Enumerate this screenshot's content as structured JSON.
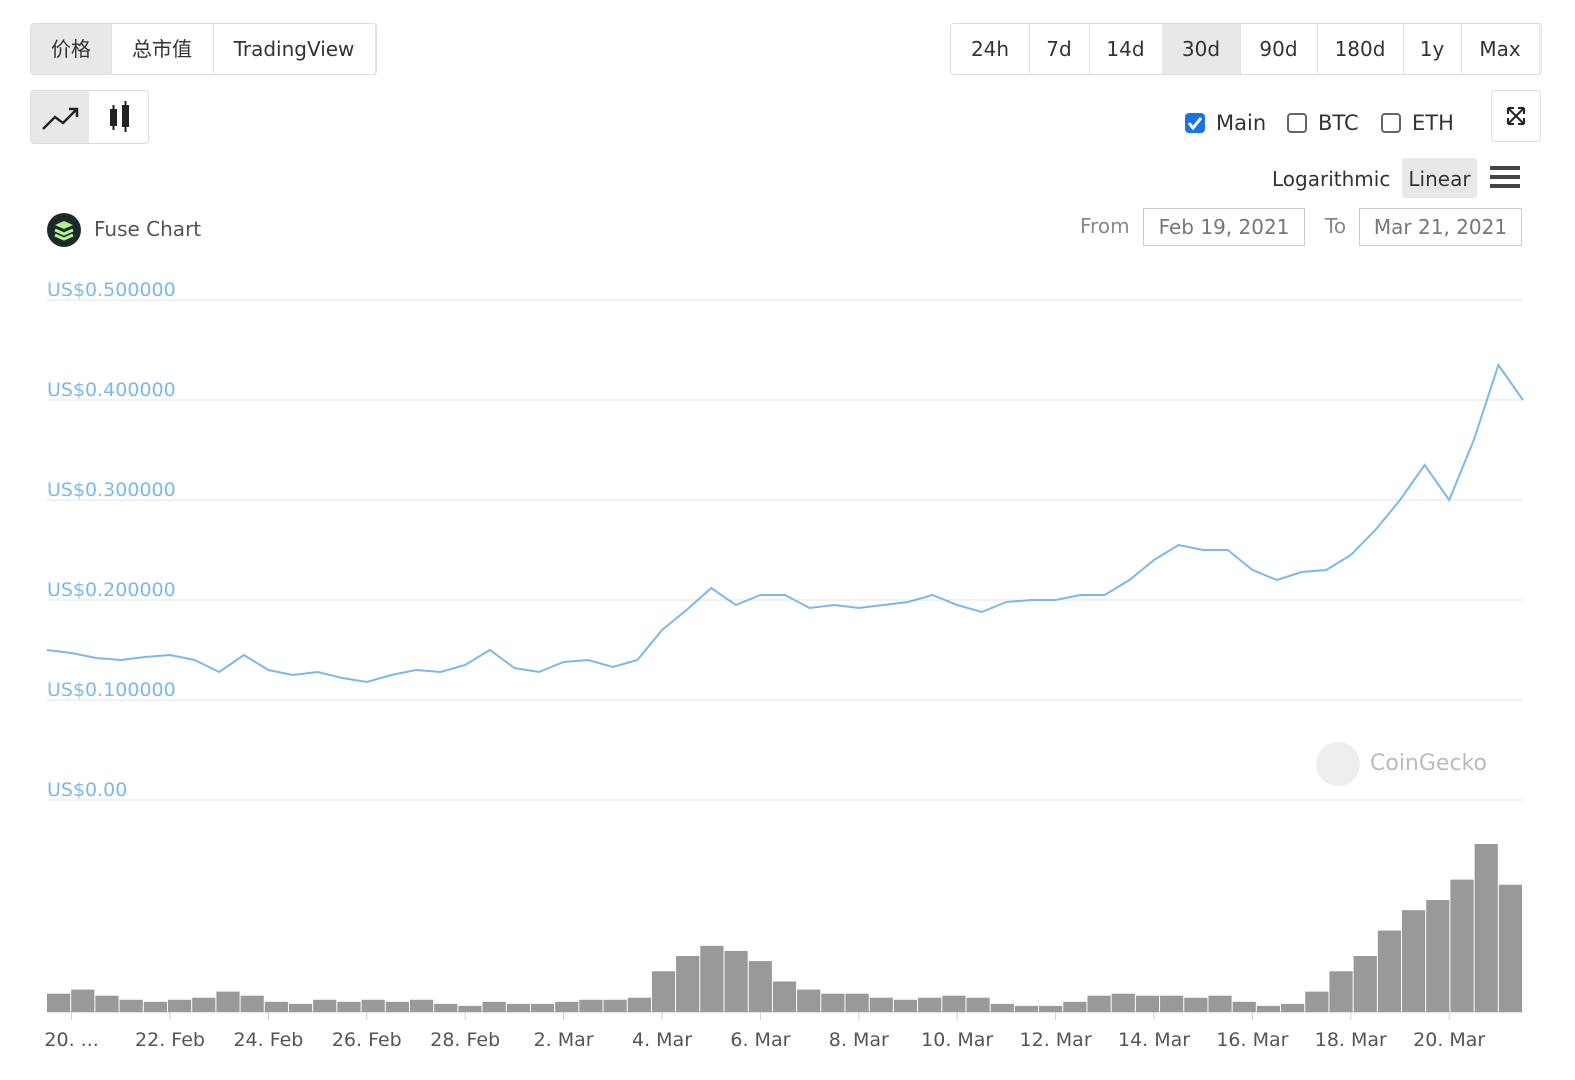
{
  "tabs": [
    {
      "label": "价格",
      "active": true
    },
    {
      "label": "总市值",
      "active": false
    },
    {
      "label": "TradingView",
      "active": false
    }
  ],
  "ranges": [
    {
      "label": "24h",
      "active": false
    },
    {
      "label": "7d",
      "active": false
    },
    {
      "label": "14d",
      "active": false
    },
    {
      "label": "30d",
      "active": true
    },
    {
      "label": "90d",
      "active": false
    },
    {
      "label": "180d",
      "active": false
    },
    {
      "label": "1y",
      "active": false
    },
    {
      "label": "Max",
      "active": false
    }
  ],
  "toggles": [
    {
      "label": "Main",
      "checked": true
    },
    {
      "label": "BTC",
      "checked": false
    },
    {
      "label": "ETH",
      "checked": false
    }
  ],
  "scales": [
    {
      "label": "Logarithmic",
      "active": false
    },
    {
      "label": "Linear",
      "active": true
    }
  ],
  "range_inputs": {
    "from_label": "From",
    "from": "Feb 19, 2021",
    "to_label": "To",
    "to": "Mar 21, 2021"
  },
  "watermark": "CoinGecko",
  "chart_data": [
    {
      "type": "line",
      "title": "Fuse Chart",
      "color": "#7db8ea",
      "categories": [
        null,
        "20. ...",
        null,
        null,
        null,
        "22. Feb",
        null,
        null,
        null,
        "24. Feb",
        null,
        null,
        null,
        "26. Feb",
        null,
        null,
        null,
        "28. Feb",
        null,
        null,
        null,
        "2. Mar",
        null,
        null,
        null,
        "4. Mar",
        null,
        null,
        null,
        "6. Mar",
        null,
        null,
        null,
        "8. Mar",
        null,
        null,
        null,
        "10. Mar",
        null,
        null,
        null,
        "12. Mar",
        null,
        null,
        null,
        "14. Mar",
        null,
        null,
        null,
        "16. Mar",
        null,
        null,
        null,
        "18. Mar",
        null,
        null,
        null,
        "20. Mar",
        null,
        null,
        null
      ],
      "values": [
        0.15,
        0.147,
        0.142,
        0.14,
        0.143,
        0.145,
        0.14,
        0.128,
        0.145,
        0.13,
        0.125,
        0.128,
        0.122,
        0.118,
        0.125,
        0.13,
        0.128,
        0.135,
        0.15,
        0.132,
        0.128,
        0.138,
        0.14,
        0.133,
        0.14,
        0.17,
        0.19,
        0.212,
        0.195,
        0.205,
        0.205,
        0.192,
        0.195,
        0.192,
        0.195,
        0.198,
        0.205,
        0.195,
        0.188,
        0.198,
        0.2,
        0.2,
        0.205,
        0.205,
        0.22,
        0.24,
        0.255,
        0.25,
        0.25,
        0.23,
        0.22,
        0.228,
        0.23,
        0.245,
        0.27,
        0.3,
        0.335,
        0.3,
        0.36,
        0.435,
        0.4
      ],
      "ylim": [
        0,
        0.5
      ],
      "yticks": [
        {
          "value": 0.5,
          "label": "US$0.500000"
        },
        {
          "value": 0.4,
          "label": "US$0.400000"
        },
        {
          "value": 0.3,
          "label": "US$0.300000"
        },
        {
          "value": 0.2,
          "label": "US$0.200000"
        },
        {
          "value": 0.1,
          "label": "US$0.100000"
        },
        {
          "value": 0,
          "label": "US$0.00"
        }
      ],
      "grid": true
    },
    {
      "type": "bar",
      "color": "#999999",
      "values": [
        18,
        22,
        16,
        12,
        10,
        12,
        14,
        20,
        16,
        10,
        8,
        12,
        10,
        12,
        10,
        12,
        8,
        6,
        10,
        8,
        8,
        10,
        12,
        12,
        14,
        40,
        55,
        65,
        60,
        50,
        30,
        22,
        18,
        18,
        14,
        12,
        14,
        16,
        14,
        8,
        6,
        6,
        10,
        16,
        18,
        16,
        16,
        14,
        16,
        10,
        6,
        8,
        20,
        40,
        55,
        80,
        100,
        110,
        130,
        165,
        125
      ]
    }
  ]
}
